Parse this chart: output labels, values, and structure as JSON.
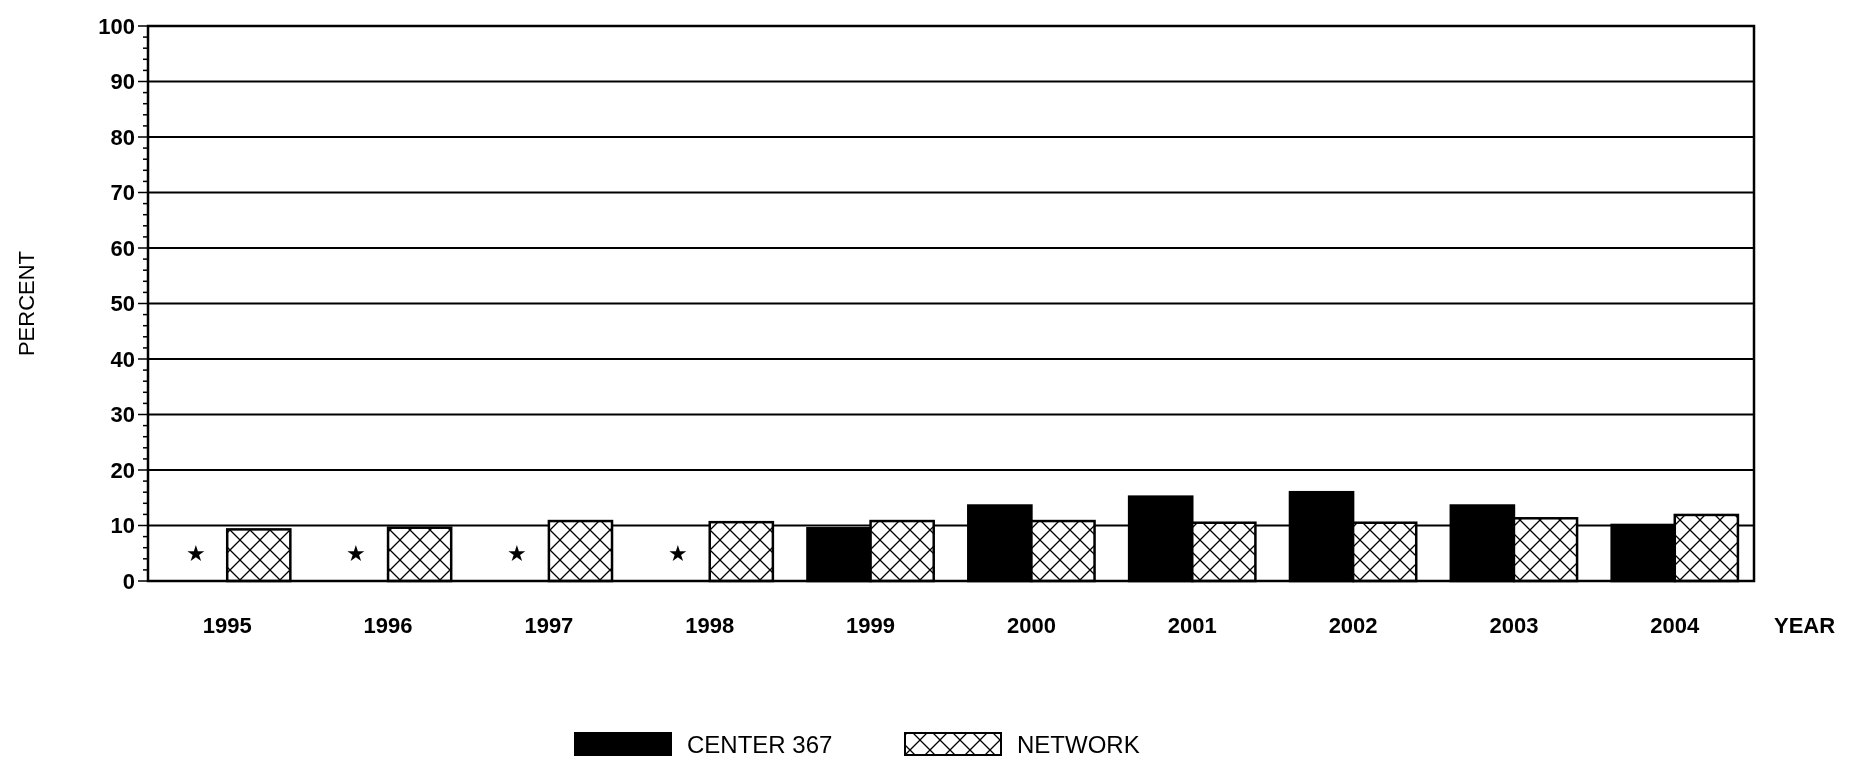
{
  "chart_data": {
    "type": "bar",
    "xlabel": "YEAR",
    "ylabel": "PERCENT",
    "categories": [
      "1995",
      "1996",
      "1997",
      "1998",
      "1999",
      "2000",
      "2001",
      "2002",
      "2003",
      "2004"
    ],
    "series": [
      {
        "name": "CENTER 367",
        "color": "#000000",
        "values": [
          null,
          null,
          null,
          null,
          9.5,
          13.6,
          15.2,
          16.0,
          13.6,
          10.1
        ]
      },
      {
        "name": "NETWORK",
        "color": "#000000",
        "values": [
          9.3,
          9.6,
          10.8,
          10.6,
          10.8,
          10.8,
          10.5,
          10.5,
          11.3,
          11.9
        ]
      }
    ],
    "annotations": [
      {
        "text": "★",
        "x": "1995",
        "y": 5
      },
      {
        "text": "★",
        "x": "1996",
        "y": 5
      },
      {
        "text": "★",
        "x": "1997",
        "y": 5
      },
      {
        "text": "★",
        "x": "1998",
        "y": 5
      }
    ],
    "ylim": [
      0,
      100
    ],
    "yticks": [
      0,
      {
        "value": 2,
        "label": null
      },
      {
        "value": 4,
        "label": null
      },
      {
        "value": 6,
        "label": null
      },
      {
        "value": 8,
        "label": null
      },
      10,
      {
        "value": 12,
        "label": null
      },
      {
        "value": 14,
        "label": null
      },
      {
        "value": 16,
        "label": null
      },
      {
        "value": 18,
        "label": null
      },
      20,
      {
        "value": 22,
        "label": null
      },
      {
        "value": 24,
        "label": null
      },
      {
        "value": 26,
        "label": null
      },
      {
        "value": 28,
        "label": null
      },
      30,
      {
        "value": 32,
        "label": null
      },
      {
        "value": 34,
        "label": null
      },
      {
        "value": 36,
        "label": null
      },
      {
        "value": 38,
        "label": null
      },
      40,
      {
        "value": 42,
        "label": null
      },
      {
        "value": 44,
        "label": null
      },
      {
        "value": 46,
        "label": null
      },
      {
        "value": 48,
        "label": null
      },
      50,
      {
        "value": 52,
        "label": null
      },
      {
        "value": 54,
        "label": null
      },
      {
        "value": 56,
        "label": null
      },
      {
        "value": 58,
        "label": null
      },
      60,
      {
        "value": 62,
        "label": null
      },
      {
        "value": 64,
        "label": null
      },
      {
        "value": 66,
        "label": null
      },
      {
        "value": 68,
        "label": null
      },
      70,
      {
        "value": 72,
        "label": null
      },
      {
        "value": 74,
        "label": null
      },
      {
        "value": 76,
        "label": null
      },
      {
        "value": 78,
        "label": null
      },
      80,
      {
        "value": 82,
        "label": null
      },
      {
        "value": 84,
        "label": null
      },
      {
        "value": 86,
        "label": null
      },
      {
        "value": 88,
        "label": null
      },
      90,
      {
        "value": 92,
        "label": null
      },
      {
        "value": 94,
        "label": null
      },
      {
        "value": 96,
        "label": null
      },
      {
        "value": 98,
        "label": null
      },
      100
    ],
    "grid": "y",
    "legend": "bottom"
  }
}
